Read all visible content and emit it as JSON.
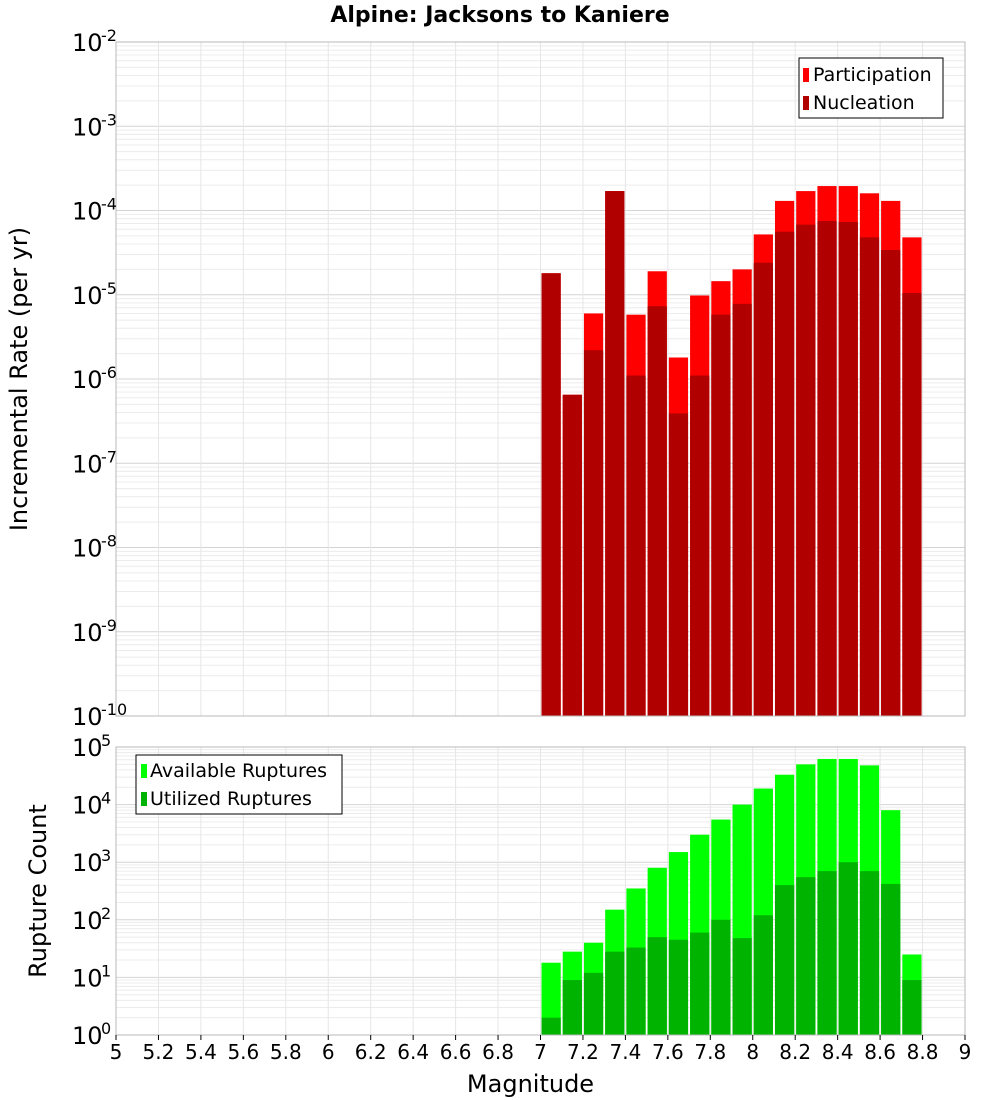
{
  "title": "Alpine: Jacksons to Kaniere",
  "chart_data": [
    {
      "type": "bar",
      "yscale": "log",
      "ylabel": "Incremental Rate (per yr)",
      "ylim_exp": [
        -10,
        -2
      ],
      "grid": true,
      "legend_position": "top-right",
      "colors": {
        "Participation": "#ff0000",
        "Nucleation": "#b00000"
      },
      "x": [
        7.0,
        7.1,
        7.2,
        7.3,
        7.4,
        7.5,
        7.6,
        7.7,
        7.8,
        7.9,
        8.0,
        8.1,
        8.2,
        8.3,
        8.4,
        8.5,
        8.6,
        8.7,
        8.8
      ],
      "series": [
        {
          "name": "Participation",
          "values": [
            1.8e-05,
            6.5e-07,
            6e-06,
            0.00017,
            5.8e-06,
            1.9e-05,
            1.8e-06,
            9.8e-06,
            1.45e-05,
            2e-05,
            5.2e-05,
            0.00013,
            0.00017,
            0.000195,
            0.000195,
            0.00016,
            0.00013,
            4.8e-05,
            0
          ]
        },
        {
          "name": "Nucleation",
          "values": [
            1.8e-05,
            6.5e-07,
            2.2e-06,
            0.00017,
            1.1e-06,
            7.3e-06,
            3.9e-07,
            1.1e-06,
            5.8e-06,
            7.8e-06,
            2.4e-05,
            5.6e-05,
            6.8e-05,
            7.5e-05,
            7.3e-05,
            4.8e-05,
            3.4e-05,
            1.05e-05,
            0
          ]
        }
      ]
    },
    {
      "type": "bar",
      "yscale": "log",
      "ylabel": "Rupture Count",
      "ylim_exp": [
        0,
        5
      ],
      "grid": true,
      "legend_position": "top-left",
      "colors": {
        "Available Ruptures": "#00ff00",
        "Utilized Ruptures": "#00b300"
      },
      "x": [
        7.0,
        7.1,
        7.2,
        7.3,
        7.4,
        7.5,
        7.6,
        7.7,
        7.8,
        7.9,
        8.0,
        8.1,
        8.2,
        8.3,
        8.4,
        8.5,
        8.6,
        8.7,
        8.8
      ],
      "series": [
        {
          "name": "Available Ruptures",
          "values": [
            18,
            28,
            40,
            150,
            350,
            800,
            1500,
            3000,
            5500,
            10000,
            19000,
            33000,
            50000,
            62000,
            62000,
            48000,
            8000,
            25,
            0
          ]
        },
        {
          "name": "Utilized Ruptures",
          "values": [
            2,
            9,
            12,
            28,
            33,
            50,
            45,
            60,
            100,
            48,
            120,
            400,
            550,
            700,
            1000,
            700,
            420,
            9,
            0
          ]
        }
      ]
    }
  ],
  "xaxis": {
    "label": "Magnitude",
    "range": [
      5,
      9
    ],
    "ticks": [
      "5",
      "5.2",
      "5.4",
      "5.6",
      "5.8",
      "6",
      "6.2",
      "6.4",
      "6.6",
      "6.8",
      "7",
      "7.2",
      "7.4",
      "7.6",
      "7.8",
      "8",
      "8.2",
      "8.4",
      "8.6",
      "8.8",
      "9"
    ]
  }
}
